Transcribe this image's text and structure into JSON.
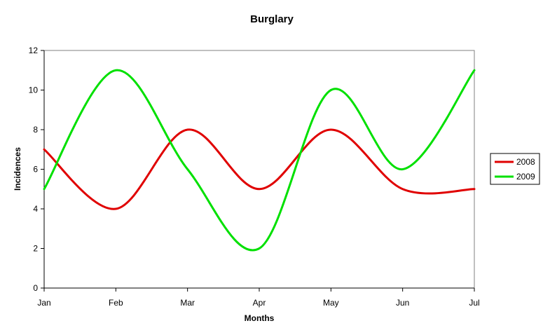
{
  "chart_data": {
    "type": "line",
    "title": "Burglary",
    "xlabel": "Months",
    "ylabel": "Incidences",
    "categories": [
      "Jan",
      "Feb",
      "Mar",
      "Apr",
      "May",
      "Jun",
      "Jul"
    ],
    "ylim": [
      0,
      12
    ],
    "yticks": [
      "0",
      "2",
      "4",
      "6",
      "8",
      "10",
      "12"
    ],
    "smooth": true,
    "grid": false,
    "legend_position": "right",
    "series": [
      {
        "name": "2008",
        "color": "#e00000",
        "values": [
          7,
          4,
          8,
          5,
          8,
          5,
          5
        ]
      },
      {
        "name": "2009",
        "color": "#00e000",
        "values": [
          5,
          11,
          6,
          2,
          10,
          6,
          11
        ]
      }
    ]
  }
}
